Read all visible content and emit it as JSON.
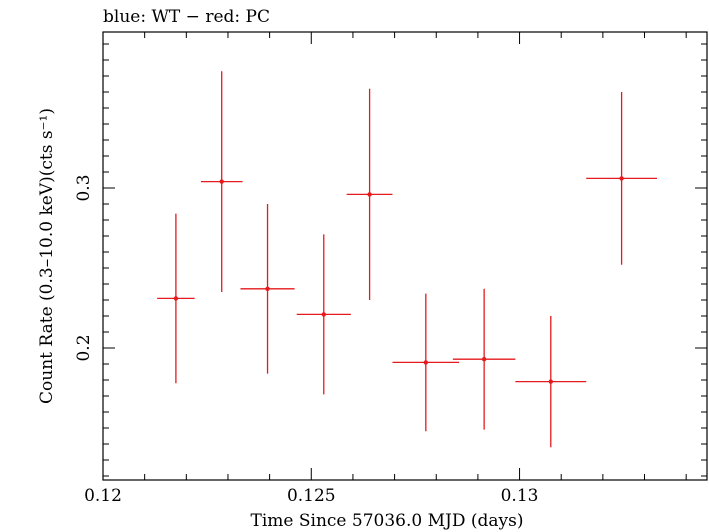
{
  "chart_data": {
    "type": "scatter",
    "title": "blue: WT − red: PC",
    "xlabel": "Time Since 57036.0 MJD (days)",
    "ylabel": "Count Rate (0.3–10.0 keV)(cts s⁻¹)",
    "xlim": [
      0.12,
      0.1345
    ],
    "ylim": [
      0.1175,
      0.3975
    ],
    "x_ticks": [
      {
        "value": 0.12,
        "label": "0.12"
      },
      {
        "value": 0.125,
        "label": "0.125"
      },
      {
        "value": 0.13,
        "label": "0.13"
      }
    ],
    "y_ticks": [
      {
        "value": 0.2,
        "label": "0.2"
      },
      {
        "value": 0.3,
        "label": "0.3"
      }
    ],
    "series": [
      {
        "name": "PC",
        "color": "#e41a1c",
        "points": [
          {
            "x": 0.12175,
            "xerr": 0.00045,
            "y": 0.231,
            "yerr_lo": 0.053,
            "yerr_hi": 0.053
          },
          {
            "x": 0.12285,
            "xerr": 0.0005,
            "y": 0.304,
            "yerr_lo": 0.069,
            "yerr_hi": 0.069
          },
          {
            "x": 0.12395,
            "xerr": 0.00065,
            "y": 0.237,
            "yerr_lo": 0.053,
            "yerr_hi": 0.053
          },
          {
            "x": 0.1253,
            "xerr": 0.00065,
            "y": 0.221,
            "yerr_lo": 0.05,
            "yerr_hi": 0.05
          },
          {
            "x": 0.1264,
            "xerr": 0.00055,
            "y": 0.296,
            "yerr_lo": 0.066,
            "yerr_hi": 0.066
          },
          {
            "x": 0.12775,
            "xerr": 0.0008,
            "y": 0.191,
            "yerr_lo": 0.043,
            "yerr_hi": 0.043
          },
          {
            "x": 0.12915,
            "xerr": 0.00075,
            "y": 0.193,
            "yerr_lo": 0.044,
            "yerr_hi": 0.044
          },
          {
            "x": 0.13075,
            "xerr": 0.00085,
            "y": 0.179,
            "yerr_lo": 0.041,
            "yerr_hi": 0.041
          },
          {
            "x": 0.13245,
            "xerr": 0.00085,
            "y": 0.306,
            "yerr_lo": 0.054,
            "yerr_hi": 0.054
          }
        ]
      }
    ],
    "grid": false,
    "legend": "none"
  }
}
